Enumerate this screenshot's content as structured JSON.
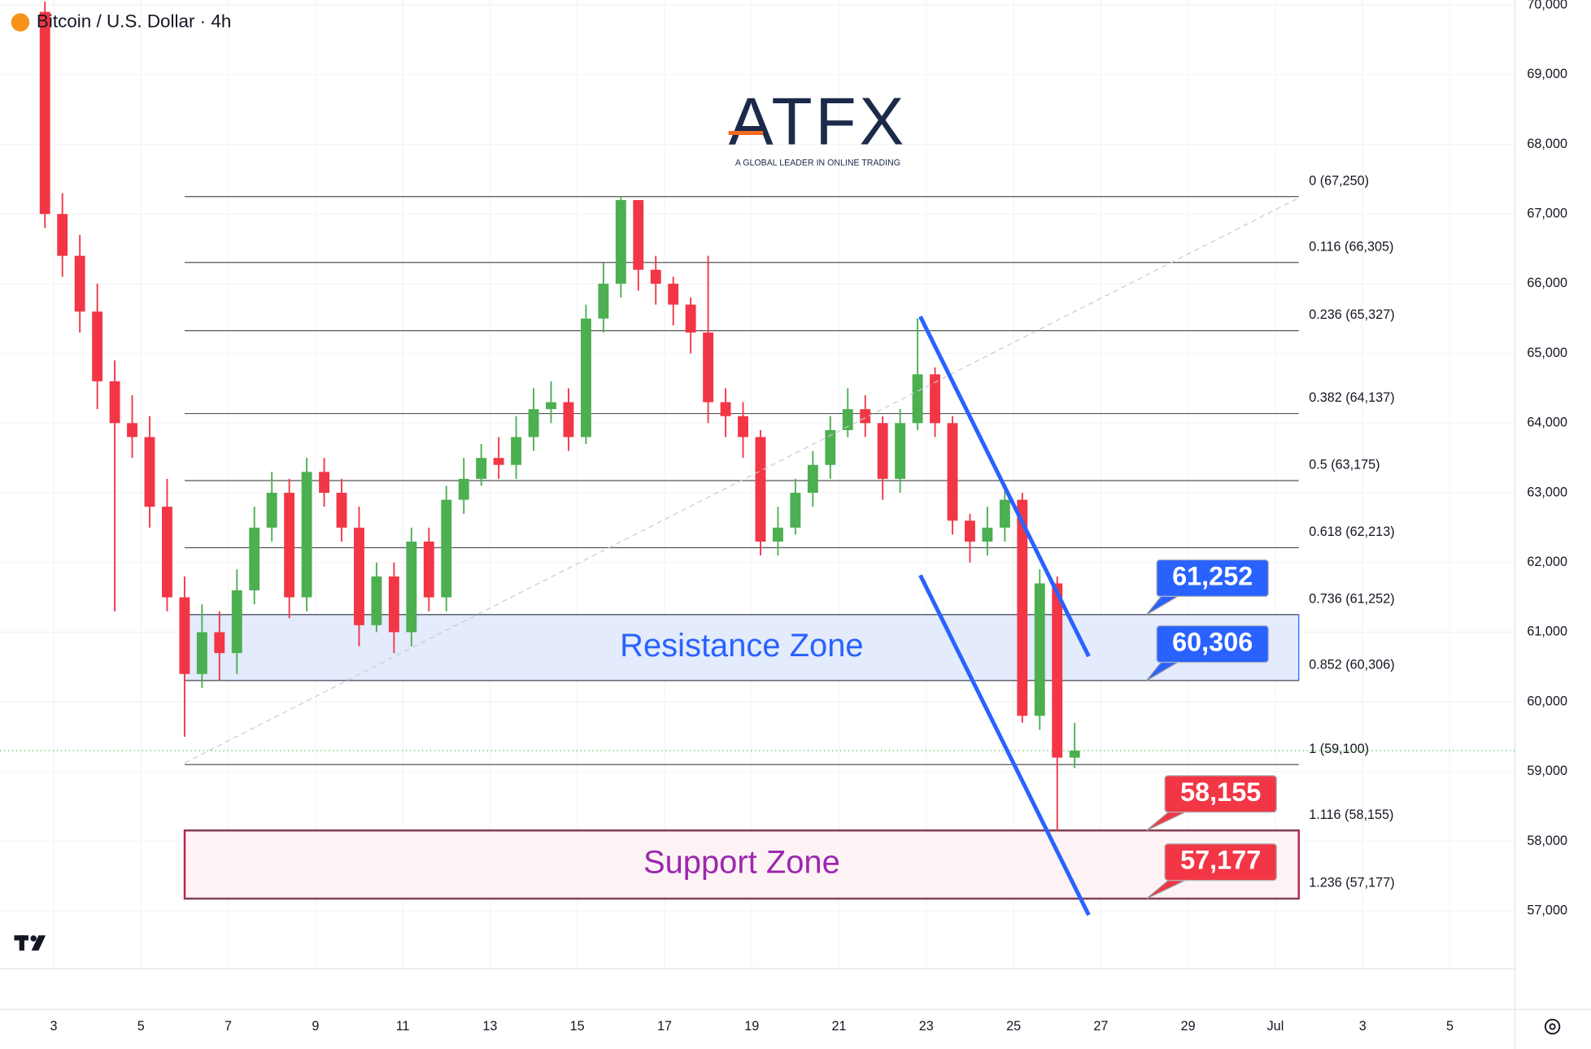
{
  "header": {
    "symbol": "Bitcoin / U.S. Dollar · 4h"
  },
  "logo": {
    "name": "ATFX",
    "tagline": "A GLOBAL LEADER IN ONLINE TRADING"
  },
  "chart_data": {
    "type": "candlestick",
    "x": [
      2.8,
      3.2,
      3.6,
      4.0,
      4.4,
      4.8,
      5.2,
      5.6,
      6.0,
      6.4,
      6.8,
      7.2,
      7.6,
      8.0,
      8.4,
      8.8,
      9.2,
      9.6,
      10.0,
      10.4,
      10.8,
      11.2,
      11.6,
      12.0,
      12.4,
      12.8,
      13.2,
      13.6,
      14.0,
      14.4,
      14.8,
      15.2,
      15.6,
      16.0,
      16.4,
      16.8,
      17.2,
      17.6,
      18.0,
      18.4,
      18.8,
      19.2,
      19.6,
      20.0,
      20.4,
      20.8,
      21.2,
      21.6,
      22.0,
      22.4,
      22.8,
      23.2,
      23.6,
      24.0,
      24.4,
      24.8,
      25.2,
      25.6,
      26.0,
      26.4
    ],
    "open": [
      69900,
      67000,
      66400,
      65600,
      64600,
      64000,
      63800,
      62800,
      61500,
      60400,
      61000,
      60700,
      61600,
      62500,
      63000,
      61500,
      63300,
      63000,
      62500,
      61100,
      61800,
      61000,
      62300,
      61500,
      62900,
      63200,
      63500,
      63400,
      63800,
      64200,
      64300,
      63800,
      65500,
      66000,
      67200,
      66200,
      66000,
      65700,
      65300,
      64300,
      64100,
      63800,
      62300,
      62500,
      63000,
      63400,
      63900,
      64200,
      64000,
      63200,
      64000,
      64700,
      64000,
      62600,
      62300,
      62500,
      62900,
      59800,
      61700,
      59200
    ],
    "high": [
      70050,
      67300,
      66700,
      66000,
      64900,
      64400,
      64100,
      63200,
      61800,
      61400,
      61300,
      61900,
      62800,
      63300,
      63200,
      63500,
      63500,
      63200,
      62800,
      62000,
      62000,
      62500,
      62500,
      63100,
      63500,
      63700,
      63800,
      64100,
      64500,
      64600,
      64500,
      65700,
      66300,
      67250,
      67200,
      66400,
      66100,
      65800,
      66400,
      64500,
      64300,
      63900,
      62800,
      63200,
      63600,
      64100,
      64500,
      64400,
      64100,
      64200,
      65500,
      64800,
      64100,
      62700,
      62800,
      63100,
      63000,
      61900,
      61800,
      59700
    ],
    "low": [
      66800,
      66100,
      65300,
      64200,
      61300,
      63500,
      62500,
      61300,
      59500,
      60200,
      60300,
      60400,
      61400,
      62300,
      61200,
      61300,
      62800,
      62300,
      60800,
      61000,
      60700,
      60800,
      61300,
      61300,
      62700,
      63100,
      63200,
      63200,
      63600,
      64000,
      63600,
      63700,
      65300,
      65800,
      65900,
      65700,
      65400,
      65000,
      64000,
      63800,
      63500,
      62100,
      62100,
      62400,
      62800,
      63200,
      63800,
      63800,
      62900,
      63000,
      63900,
      63800,
      62400,
      62000,
      62100,
      62300,
      59700,
      59600,
      58150,
      59050
    ],
    "close": [
      67000,
      66400,
      65600,
      64600,
      64000,
      63800,
      62800,
      61500,
      60400,
      61000,
      60700,
      61600,
      62500,
      63000,
      61500,
      63300,
      63000,
      62500,
      61100,
      61800,
      61000,
      62300,
      61500,
      62900,
      63200,
      63500,
      63400,
      63800,
      64200,
      64300,
      63800,
      65500,
      66000,
      67200,
      66200,
      66000,
      65700,
      65300,
      64300,
      64100,
      63800,
      62300,
      62500,
      63000,
      63400,
      63900,
      64200,
      64000,
      63200,
      64000,
      64700,
      64000,
      62600,
      62300,
      62500,
      62900,
      59800,
      61700,
      59200,
      59300
    ],
    "up_color": "#4caf50",
    "down_color": "#f23645",
    "xlim": [
      1.77,
      36.49
    ],
    "ylim": [
      56170,
      70070
    ],
    "xticks": [
      3,
      5,
      7,
      9,
      11,
      13,
      15,
      17,
      19,
      21,
      23,
      25,
      27,
      29,
      {
        "value": 31,
        "label": "Jul"
      },
      {
        "value": 33,
        "label": "3"
      },
      {
        "value": 35,
        "label": "5"
      }
    ],
    "yticks": [
      {
        "value": 57000,
        "label": "57,000"
      },
      {
        "value": 58000,
        "label": "58,000"
      },
      {
        "value": 59000,
        "label": "59,000"
      },
      {
        "value": 60000,
        "label": "60,000"
      },
      {
        "value": 61000,
        "label": "61,000"
      },
      {
        "value": 62000,
        "label": "62,000"
      },
      {
        "value": 63000,
        "label": "63,000"
      },
      {
        "value": 64000,
        "label": "64,000"
      },
      {
        "value": 65000,
        "label": "65,000"
      },
      {
        "value": 66000,
        "label": "66,000"
      },
      {
        "value": 67000,
        "label": "67,000"
      },
      {
        "value": 68000,
        "label": "68,000"
      },
      {
        "value": 69000,
        "label": "69,000"
      },
      {
        "value": 70000,
        "label": "70,000"
      }
    ],
    "grid": true,
    "last_price": 59300,
    "fib_levels": [
      {
        "value": 67250,
        "label": "0 (67,250)"
      },
      {
        "value": 66305,
        "label": "0.116 (66,305)"
      },
      {
        "value": 65327,
        "label": "0.236 (65,327)"
      },
      {
        "value": 64137,
        "label": "0.382 (64,137)"
      },
      {
        "value": 63175,
        "label": "0.5 (63,175)"
      },
      {
        "value": 62213,
        "label": "0.618 (62,213)"
      },
      {
        "value": 61252,
        "label": "0.736 (61,252)"
      },
      {
        "value": 60306,
        "label": "0.852 (60,306)"
      },
      {
        "value": 59100,
        "label": "1 (59,100)"
      },
      {
        "value": 58155,
        "label": "1.116 (58,155)"
      },
      {
        "value": 57177,
        "label": "1.236 (57,177)"
      }
    ],
    "zones": [
      {
        "name": "Resistance Zone",
        "low": 60306,
        "high": 61252,
        "color": "#2962ff",
        "fill": "#e3ebfd",
        "text_color": "#2962ff"
      },
      {
        "name": "Support Zone",
        "low": 57177,
        "high": 58155,
        "color": "#b22a4c",
        "fill": "#fdf3f5",
        "text_color": "#9c27b0"
      }
    ],
    "callouts": [
      {
        "value": 61252,
        "label": "61,252",
        "color": "#2962ff"
      },
      {
        "value": 60306,
        "label": "60,306",
        "color": "#2962ff"
      },
      {
        "value": 58155,
        "label": "58,155",
        "color": "#f23645"
      },
      {
        "value": 57177,
        "label": "57,177",
        "color": "#f23645"
      }
    ]
  }
}
